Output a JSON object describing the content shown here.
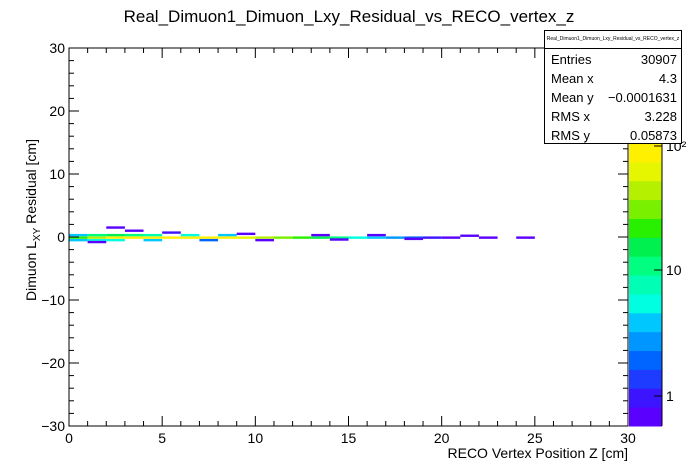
{
  "chart_data": {
    "type": "heatmap",
    "title": "Real_Dimuon1_Dimuon_Lxy_Residual_vs_RECO_vertex_z",
    "xlabel": "RECO Vertex Position Z [cm]",
    "ylabel_parts": {
      "main": "Dimuon L",
      "sub": "XY",
      "rest": " Residual [cm]"
    },
    "xlim": [
      0,
      30
    ],
    "ylim": [
      -30,
      30
    ],
    "x_ticks": [
      0,
      5,
      10,
      15,
      20,
      25,
      30
    ],
    "y_ticks": [
      -30,
      -20,
      -10,
      0,
      10,
      20,
      30
    ],
    "colorbar": {
      "scale": "log",
      "labels": [
        "1",
        "10",
        "10²"
      ],
      "palette": [
        "#5a00ff",
        "#3c14ff",
        "#1e3cff",
        "#0064ff",
        "#0096ff",
        "#00c8ff",
        "#00ffe0",
        "#00ffb4",
        "#00ff80",
        "#00f050",
        "#28f000",
        "#78f000",
        "#b4f000",
        "#e6f500",
        "#fff000"
      ]
    },
    "cells": [
      {
        "x": 0.5,
        "y": -0.1,
        "c": 40
      },
      {
        "x": 1.5,
        "y": -0.1,
        "c": 90
      },
      {
        "x": 2.5,
        "y": -0.1,
        "c": 150
      },
      {
        "x": 3.5,
        "y": -0.1,
        "c": 160
      },
      {
        "x": 4.5,
        "y": -0.1,
        "c": 170
      },
      {
        "x": 5.5,
        "y": -0.1,
        "c": 200
      },
      {
        "x": 6.5,
        "y": -0.1,
        "c": 210
      },
      {
        "x": 7.5,
        "y": -0.1,
        "c": 200
      },
      {
        "x": 8.5,
        "y": -0.1,
        "c": 160
      },
      {
        "x": 9.5,
        "y": -0.1,
        "c": 120
      },
      {
        "x": 10.5,
        "y": -0.1,
        "c": 95
      },
      {
        "x": 11.5,
        "y": -0.1,
        "c": 70
      },
      {
        "x": 12.5,
        "y": -0.1,
        "c": 45
      },
      {
        "x": 13.5,
        "y": -0.1,
        "c": 30
      },
      {
        "x": 14.5,
        "y": -0.1,
        "c": 18
      },
      {
        "x": 15.5,
        "y": -0.1,
        "c": 12
      },
      {
        "x": 16.5,
        "y": -0.1,
        "c": 8
      },
      {
        "x": 17.5,
        "y": -0.1,
        "c": 5
      },
      {
        "x": 18.5,
        "y": -0.1,
        "c": 3
      },
      {
        "x": 19.5,
        "y": -0.1,
        "c": 2
      },
      {
        "x": 20.5,
        "y": -0.1,
        "c": 1
      },
      {
        "x": 22.5,
        "y": -0.1,
        "c": 1
      },
      {
        "x": 24.5,
        "y": -0.1,
        "c": 1
      },
      {
        "x": 0.5,
        "y": 0.3,
        "c": 8
      },
      {
        "x": 1.5,
        "y": 0.3,
        "c": 20
      },
      {
        "x": 2.5,
        "y": 0.3,
        "c": 25
      },
      {
        "x": 3.5,
        "y": 0.3,
        "c": 20
      },
      {
        "x": 4.5,
        "y": 0.3,
        "c": 15
      },
      {
        "x": 6.5,
        "y": 0.3,
        "c": 10
      },
      {
        "x": 8.5,
        "y": 0.3,
        "c": 6
      },
      {
        "x": 0.5,
        "y": -0.5,
        "c": 6
      },
      {
        "x": 1.5,
        "y": -0.5,
        "c": 12
      },
      {
        "x": 2.5,
        "y": -0.5,
        "c": 10
      },
      {
        "x": 4.5,
        "y": -0.5,
        "c": 6
      },
      {
        "x": 7.5,
        "y": -0.5,
        "c": 3
      },
      {
        "x": 2.5,
        "y": 1.5,
        "c": 1
      },
      {
        "x": 3.5,
        "y": 1.0,
        "c": 1
      },
      {
        "x": 5.5,
        "y": 0.7,
        "c": 2
      },
      {
        "x": 9.5,
        "y": 0.5,
        "c": 1
      },
      {
        "x": 13.5,
        "y": 0.3,
        "c": 1
      },
      {
        "x": 16.5,
        "y": 0.3,
        "c": 1
      },
      {
        "x": 21.5,
        "y": 0.2,
        "c": 1
      },
      {
        "x": 1.5,
        "y": -0.8,
        "c": 1
      },
      {
        "x": 10.5,
        "y": -0.5,
        "c": 1
      },
      {
        "x": 14.5,
        "y": -0.4,
        "c": 1
      },
      {
        "x": 18.5,
        "y": -0.3,
        "c": 1
      }
    ]
  },
  "stats_box": {
    "title": "Real_Dimuon1_Dimuon_Lxy_Residual_vs_RECO_vertex_z",
    "rows": [
      {
        "key": "Entries",
        "value": "30907"
      },
      {
        "key": "Mean x",
        "value": "4.3"
      },
      {
        "key": "Mean y",
        "value": "−0.0001631"
      },
      {
        "key": "RMS x",
        "value": "3.228"
      },
      {
        "key": "RMS y",
        "value": "0.05873"
      }
    ]
  }
}
